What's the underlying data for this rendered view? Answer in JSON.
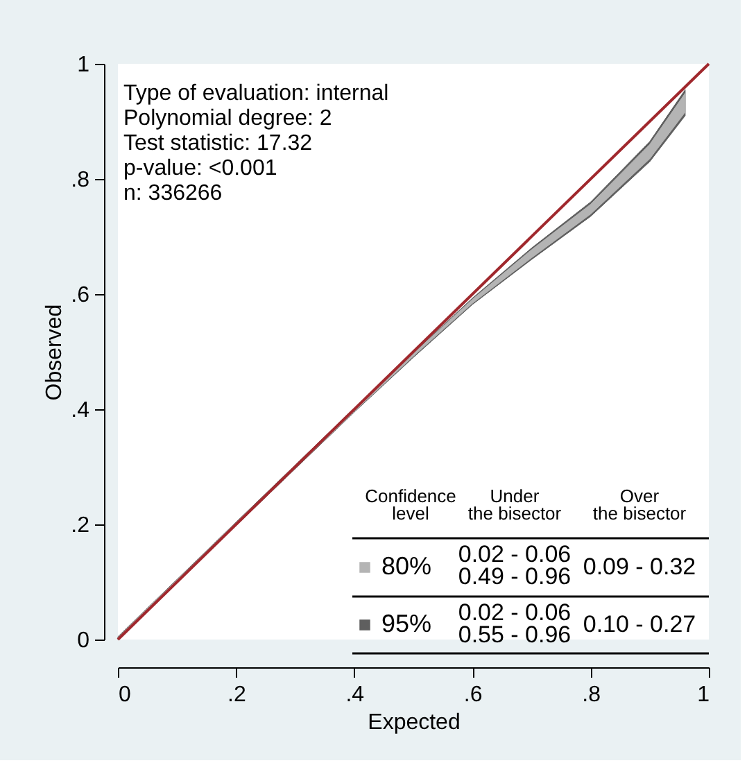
{
  "chart_data": {
    "type": "area",
    "xlabel": "Expected",
    "ylabel": "Observed",
    "xlim": [
      0,
      1
    ],
    "ylim": [
      0,
      1
    ],
    "xticks": [
      0,
      {
        "value": 0.2,
        "label": ".2"
      },
      {
        "value": 0.4,
        "label": ".4"
      },
      {
        "value": 0.6,
        "label": ".6"
      },
      {
        "value": 0.8,
        "label": ".8"
      },
      1
    ],
    "yticks": [
      0,
      {
        "value": 0.2,
        "label": ".2"
      },
      {
        "value": 0.4,
        "label": ".4"
      },
      {
        "value": 0.6,
        "label": ".6"
      },
      {
        "value": 0.8,
        "label": ".8"
      },
      1
    ],
    "legend": "bottom right",
    "legend_title": "Confidence\nlevel",
    "grid": false,
    "series": [
      {
        "name": "80%",
        "color": "#b4b4b4",
        "x": [
          0,
          0.2,
          0.4,
          0.5,
          0.6,
          0.7,
          0.8,
          0.9,
          0.96
        ],
        "values": [
          null,
          null,
          null,
          null,
          null,
          null,
          null,
          null,
          null
        ],
        "lower": [
          0.001,
          0.199,
          0.396,
          0.492,
          0.584,
          0.663,
          0.739,
          0.835,
          0.916
        ],
        "upper": [
          0.004,
          0.203,
          0.401,
          0.497,
          0.591,
          0.677,
          0.756,
          0.86,
          0.949
        ]
      },
      {
        "name": "95%",
        "color": "#5f5f5f",
        "x": [
          0,
          0.2,
          0.4,
          0.5,
          0.6,
          0.7,
          0.8,
          0.9,
          0.96
        ],
        "values": [
          null,
          null,
          null,
          null,
          null,
          null,
          null,
          null,
          null
        ],
        "lower": [
          0,
          0.198,
          0.395,
          0.49,
          0.582,
          0.66,
          0.735,
          0.83,
          0.91
        ],
        "upper": [
          0.005,
          0.204,
          0.402,
          0.498,
          0.593,
          0.68,
          0.76,
          0.865,
          0.955
        ]
      },
      {
        "type": "line",
        "color": "#a0282d",
        "x": [
          0,
          1
        ],
        "values": [
          0,
          1
        ]
      }
    ],
    "annotations": [
      "Type of evaluation: internal",
      "Polynomial degree: 2",
      "Test statistic: 17.32",
      "p-value: <0.001",
      "n: 336266",
      "Under\nthe bisector",
      "Over\nthe bisector",
      "0.02 - 0.06\n0.49 - 0.96",
      "0.09 - 0.32",
      "0.02 - 0.06\n0.55 - 0.96",
      "0.10 - 0.27"
    ]
  }
}
